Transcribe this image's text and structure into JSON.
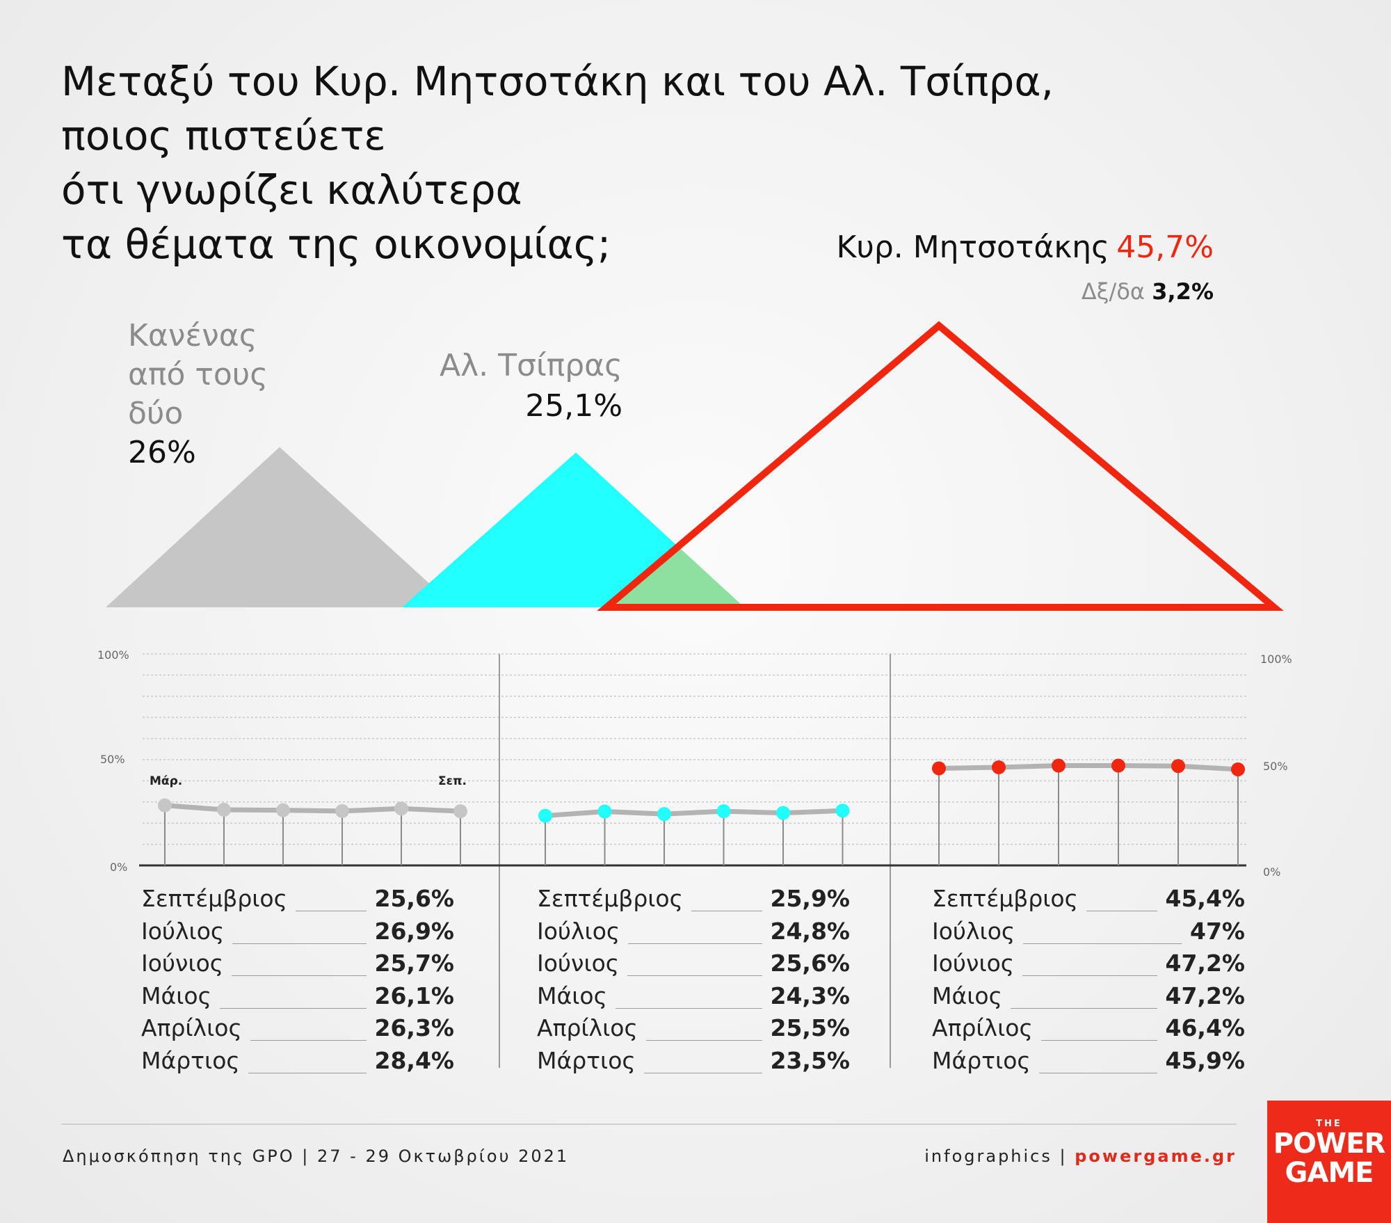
{
  "title_lines": [
    "Μεταξύ του Κυρ. Μητσοτάκη και του Αλ. Τσίπρα,",
    "ποιος πιστεύετε",
    "ότι γνωρίζει καλύτερα",
    "τα θέματα της οικονομίας;"
  ],
  "headline": {
    "none": {
      "label_lines": [
        "Κανένας",
        "από τους",
        "δύο"
      ],
      "value": "26%"
    },
    "tsipras": {
      "label": "Αλ. Τσίπρας",
      "value": "25,1%"
    },
    "mitsotakis": {
      "label": "Κυρ. Μητσοτάκης",
      "value": "45,7%"
    },
    "dk": {
      "label": "Δξ/δα",
      "value": "3,2%"
    }
  },
  "colors": {
    "none": "#c6c6c6",
    "tsipras": "#22ffff",
    "mitsotakis": "#f0260f",
    "line": "#b3b3b3"
  },
  "chart_data": [
    {
      "type": "bar",
      "title": "",
      "categories": [
        "Κανένας από τους δύο",
        "Αλ. Τσίπρας",
        "Κυρ. Μητσοτάκης",
        "Δξ/δα"
      ],
      "values": [
        26,
        25.1,
        45.7,
        3.2
      ]
    },
    {
      "type": "line",
      "title": "",
      "x": [
        "Μάρτιος",
        "Απρίλιος",
        "Μάιος",
        "Ιούνιος",
        "Ιούλιος",
        "Σεπτέμβριος"
      ],
      "series": [
        {
          "name": "Κανένας από τους δύο",
          "values": [
            28.4,
            26.3,
            26.1,
            25.7,
            26.9,
            25.6
          ]
        },
        {
          "name": "Αλ. Τσίπρας",
          "values": [
            23.5,
            25.5,
            24.3,
            25.6,
            24.8,
            25.9
          ]
        },
        {
          "name": "Κυρ. Μητσοτάκης",
          "values": [
            45.9,
            46.4,
            47.2,
            47.2,
            47,
            45.4
          ]
        }
      ],
      "ylim": [
        0,
        100
      ],
      "grid": true,
      "y_ticks_left": [
        "100%",
        "50%",
        "0%"
      ],
      "y_ticks_right": [
        "100%",
        "50%",
        "0%"
      ],
      "start_label": "Μάρ.",
      "end_label": "Σεπ."
    }
  ],
  "tables": [
    {
      "rows": [
        {
          "month": "Σεπτέμβριος",
          "value": "25,6%"
        },
        {
          "month": "Ιούλιος",
          "value": "26,9%"
        },
        {
          "month": "Ιούνιος",
          "value": "25,7%"
        },
        {
          "month": "Μάιος",
          "value": "26,1%"
        },
        {
          "month": "Απρίλιος",
          "value": "26,3%"
        },
        {
          "month": "Μάρτιος",
          "value": "28,4%"
        }
      ]
    },
    {
      "rows": [
        {
          "month": "Σεπτέμβριος",
          "value": "25,9%"
        },
        {
          "month": "Ιούλιος",
          "value": "24,8%"
        },
        {
          "month": "Ιούνιος",
          "value": "25,6%"
        },
        {
          "month": "Μάιος",
          "value": "24,3%"
        },
        {
          "month": "Απρίλιος",
          "value": "25,5%"
        },
        {
          "month": "Μάρτιος",
          "value": "23,5%"
        }
      ]
    },
    {
      "rows": [
        {
          "month": "Σεπτέμβριος",
          "value": "45,4%"
        },
        {
          "month": "Ιούλιος",
          "value": "47%"
        },
        {
          "month": "Ιούνιος",
          "value": "47,2%"
        },
        {
          "month": "Μάιος",
          "value": "47,2%"
        },
        {
          "month": "Απρίλιος",
          "value": "46,4%"
        },
        {
          "month": "Μάρτιος",
          "value": "45,9%"
        }
      ]
    }
  ],
  "footer": {
    "source": "Δημοσκόπηση της GPO | 27 - 29 Οκτωβρίου 2021",
    "credit": "infographics |",
    "site": "powergame.gr"
  },
  "logo": {
    "the": "THE",
    "line1": "POWER",
    "line2": "GAME"
  }
}
